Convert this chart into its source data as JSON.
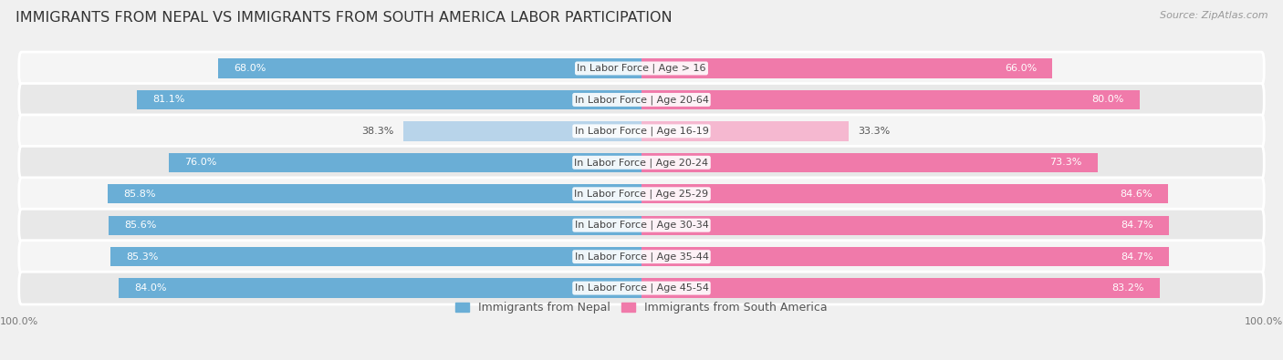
{
  "title": "IMMIGRANTS FROM NEPAL VS IMMIGRANTS FROM SOUTH AMERICA LABOR PARTICIPATION",
  "source": "Source: ZipAtlas.com",
  "categories": [
    "In Labor Force | Age > 16",
    "In Labor Force | Age 20-64",
    "In Labor Force | Age 16-19",
    "In Labor Force | Age 20-24",
    "In Labor Force | Age 25-29",
    "In Labor Force | Age 30-34",
    "In Labor Force | Age 35-44",
    "In Labor Force | Age 45-54"
  ],
  "nepal_values": [
    68.0,
    81.1,
    38.3,
    76.0,
    85.8,
    85.6,
    85.3,
    84.0
  ],
  "south_america_values": [
    66.0,
    80.0,
    33.3,
    73.3,
    84.6,
    84.7,
    84.7,
    83.2
  ],
  "nepal_color": "#6aaed6",
  "nepal_color_light": "#b8d4ea",
  "south_america_color": "#f07aaa",
  "south_america_color_light": "#f5b8d0",
  "max_value": 100.0,
  "background_color": "#f0f0f0",
  "row_bg_even": "#f5f5f5",
  "row_bg_odd": "#e8e8e8",
  "title_fontsize": 11.5,
  "label_fontsize": 8,
  "value_fontsize": 8,
  "legend_fontsize": 9,
  "source_fontsize": 8
}
